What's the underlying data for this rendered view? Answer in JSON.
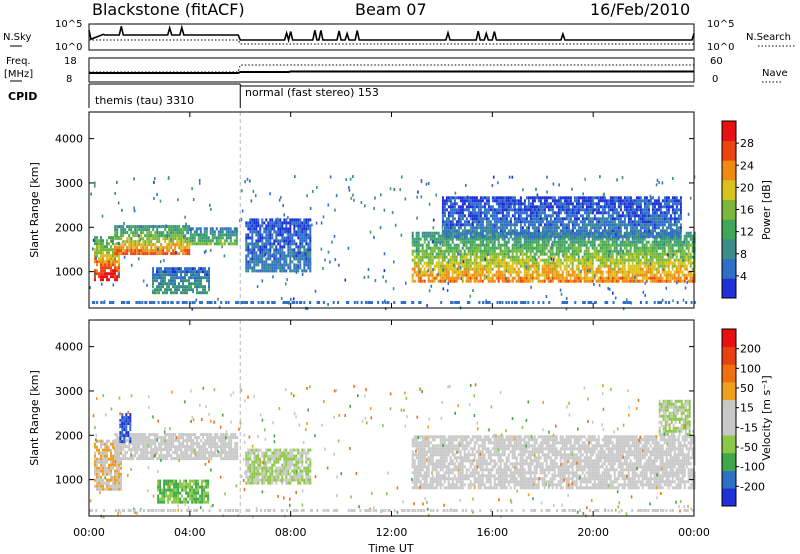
{
  "header": {
    "station": "Blackstone (fitACF)",
    "beam": "Beam 07",
    "date": "16/Feb/2010"
  },
  "status_panels": {
    "nsky_label": "N.Sky",
    "nsky_ticks": [
      "10^5",
      "10^0"
    ],
    "nsearch_label": "N.Search",
    "nsearch_ticks": [
      "10^5",
      "10^0"
    ],
    "freq_label": "Freq.",
    "freq_unit": "[MHz]",
    "freq_ticks": [
      "18",
      "8"
    ],
    "nave_label": "Nave",
    "nave_ticks": [
      "60",
      "0"
    ],
    "cpid_label": "CPID",
    "cpid_segments": [
      {
        "name": "themis (tau) 3310",
        "start_hour": 0,
        "end_hour": 6
      },
      {
        "name": "normal (fast stereo) 153",
        "start_hour": 6,
        "end_hour": 24
      }
    ]
  },
  "xaxis": {
    "label": "Time UT",
    "ticks": [
      "00:00",
      "04:00",
      "08:00",
      "12:00",
      "16:00",
      "20:00",
      "00:00"
    ],
    "tick_hours": [
      0,
      4,
      8,
      12,
      16,
      20,
      24
    ],
    "range_hours": [
      0,
      24
    ]
  },
  "chart_data": [
    {
      "type": "heatmap",
      "title": "Power",
      "ylabel": "Slant Range [km]",
      "yticks": [
        "4000",
        "3000",
        "2000",
        "1000"
      ],
      "ytick_values": [
        4000,
        3000,
        2000,
        1000
      ],
      "ylim": [
        180,
        4600
      ],
      "colorbar_label": "Power [dB]",
      "colorbar_ticks": [
        "28",
        "24",
        "20",
        "16",
        "12",
        "8",
        "4"
      ],
      "colorbar_range": [
        0,
        32
      ],
      "colors": [
        "#1f2fd6",
        "#2f6fc8",
        "#3c8c8a",
        "#3fa75a",
        "#7ab83a",
        "#d8c21e",
        "#f08a10",
        "#ec4412",
        "#e81010"
      ],
      "regions": [
        {
          "start_hour": 0.2,
          "end_hour": 1.2,
          "range_lo": 850,
          "range_hi": 1800,
          "power": 26
        },
        {
          "start_hour": 1.0,
          "end_hour": 4.0,
          "range_lo": 1400,
          "range_hi": 2050,
          "power": 22
        },
        {
          "start_hour": 4.0,
          "end_hour": 5.9,
          "range_lo": 1600,
          "range_hi": 2000,
          "power": 14
        },
        {
          "start_hour": 2.5,
          "end_hour": 4.8,
          "range_lo": 500,
          "range_hi": 1100,
          "power": 10
        },
        {
          "start_hour": 6.2,
          "end_hour": 8.8,
          "range_lo": 1000,
          "range_hi": 2200,
          "power": 6
        },
        {
          "start_hour": 12.8,
          "end_hour": 24.0,
          "range_lo": 800,
          "range_hi": 1900,
          "power": 20
        },
        {
          "start_hour": 14.0,
          "end_hour": 23.5,
          "range_lo": 1800,
          "range_hi": 2700,
          "power": 6
        }
      ]
    },
    {
      "type": "heatmap",
      "title": "Velocity",
      "ylabel": "Slant Range [km]",
      "yticks": [
        "4000",
        "3000",
        "2000",
        "1000"
      ],
      "ytick_values": [
        4000,
        3000,
        2000,
        1000
      ],
      "ylim": [
        180,
        4600
      ],
      "colorbar_label": "Velocity [m s⁻¹]",
      "colorbar_ticks": [
        "200",
        "100",
        "50",
        "15",
        "-15",
        "-50",
        "-100",
        "-200"
      ],
      "colorbar_range": [
        -250,
        250
      ],
      "colors": [
        "#1f2fd6",
        "#2f6fc8",
        "#3ea84a",
        "#8cc846",
        "#c8c8c8",
        "#c8c8c8",
        "#f0a020",
        "#f07010",
        "#e84010",
        "#e81010"
      ],
      "regions": [
        {
          "start_hour": 0.2,
          "end_hour": 1.3,
          "range_lo": 800,
          "range_hi": 1900,
          "velocity": 50
        },
        {
          "start_hour": 1.0,
          "end_hour": 5.9,
          "range_lo": 1500,
          "range_hi": 2050,
          "velocity": 0
        },
        {
          "start_hour": 1.2,
          "end_hour": 1.6,
          "range_lo": 1850,
          "range_hi": 2500,
          "velocity": -200
        },
        {
          "start_hour": 2.7,
          "end_hour": 4.7,
          "range_lo": 500,
          "range_hi": 1000,
          "velocity": -100
        },
        {
          "start_hour": 6.2,
          "end_hour": 8.8,
          "range_lo": 900,
          "range_hi": 1700,
          "velocity": -50
        },
        {
          "start_hour": 12.8,
          "end_hour": 24.0,
          "range_lo": 800,
          "range_hi": 2000,
          "velocity": 0
        },
        {
          "start_hour": 22.6,
          "end_hour": 23.8,
          "range_lo": 2000,
          "range_hi": 2800,
          "velocity": -50
        }
      ]
    }
  ]
}
